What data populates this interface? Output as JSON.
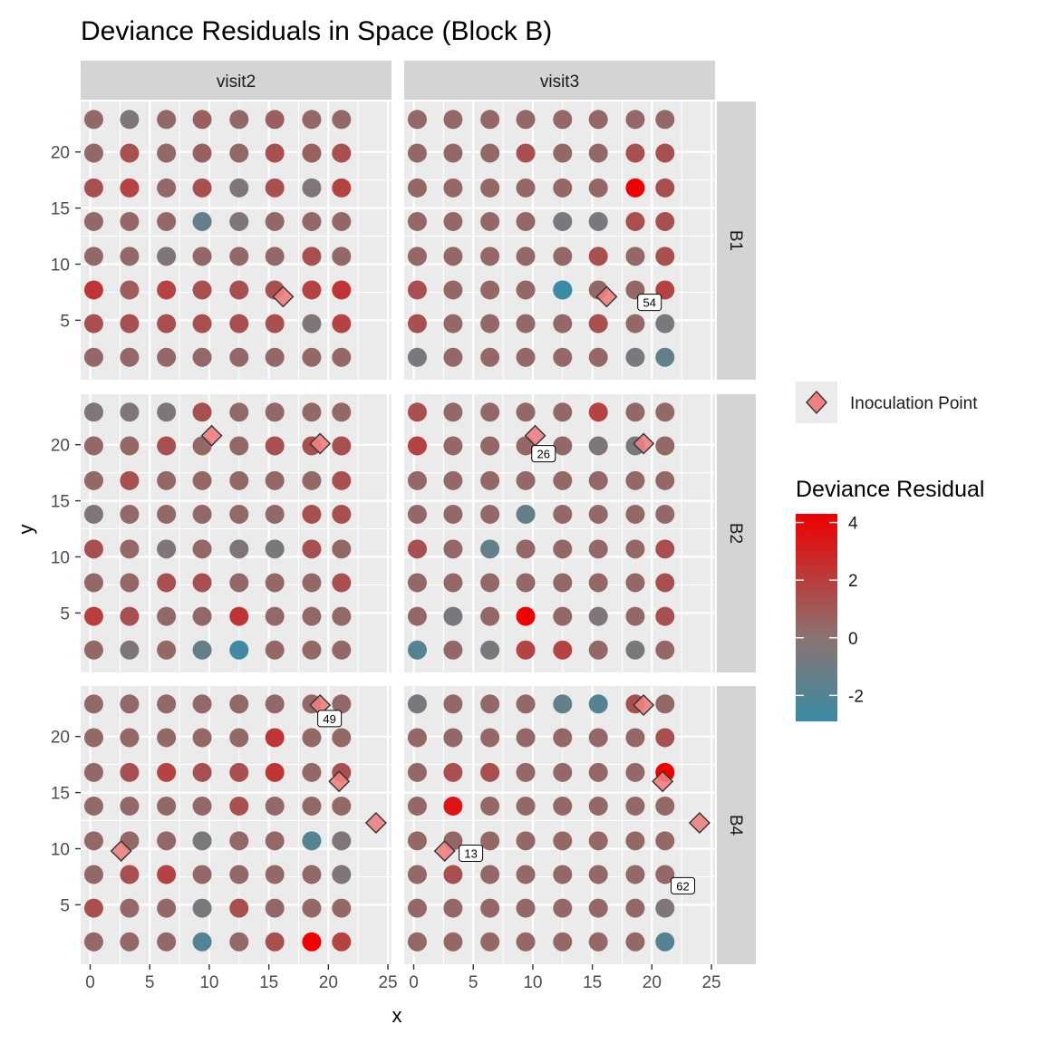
{
  "chart_data": {
    "type": "scatter",
    "title": "Deviance Residuals in Space (Block B)",
    "xlabel": "x",
    "ylabel": "y",
    "xlim": [
      -0.8,
      25.3
    ],
    "ylim": [
      -0.3,
      24.5
    ],
    "xticks": [
      0,
      5,
      10,
      15,
      20,
      25
    ],
    "yticks": [
      5,
      10,
      15,
      20
    ],
    "grid": true,
    "facet_cols": [
      "visit2",
      "visit3"
    ],
    "facet_rows": [
      "B1",
      "B2",
      "B4"
    ],
    "x_positions": [
      0.3,
      3.3,
      6.4,
      9.4,
      12.5,
      15.5,
      18.6,
      21.1
    ],
    "y_positions": [
      1.7,
      4.7,
      7.7,
      10.7,
      13.8,
      16.8,
      19.9,
      22.9
    ],
    "color_scale": {
      "title": "Deviance Residual",
      "min": -2.9,
      "max": 4.3,
      "low": "#3a8ba4",
      "mid": "#8a7372",
      "high": "#ee0000",
      "breaks": [
        4,
        2,
        0,
        -2
      ]
    },
    "legend": {
      "placement": "right",
      "inoculation_label": "Inoculation Point",
      "inoculation_color": "#f08080"
    },
    "panels": [
      {
        "row": "B1",
        "col": "visit2",
        "residuals": [
          [
            0.4,
            -0.4,
            0.4,
            0.7,
            0.4,
            0.7,
            0.4,
            0.4
          ],
          [
            0.4,
            1.3,
            0.4,
            0.7,
            0.4,
            1.3,
            0.7,
            1.3
          ],
          [
            1.3,
            1.8,
            0.4,
            1.3,
            -0.4,
            1.3,
            -0.4,
            1.8
          ],
          [
            0.4,
            0.4,
            0.4,
            -1.4,
            -0.4,
            0.4,
            0.4,
            0.4
          ],
          [
            0.4,
            0.4,
            -0.4,
            0.4,
            0.4,
            0.4,
            1.3,
            0.4
          ],
          [
            2.3,
            0.8,
            1.8,
            1.3,
            1.3,
            1.3,
            1.8,
            2.3
          ],
          [
            1.3,
            1.3,
            1.3,
            1.3,
            1.3,
            1.3,
            -0.4,
            1.8
          ],
          [
            0.4,
            0.4,
            0.4,
            0.4,
            0.4,
            0.4,
            0.4,
            0.4
          ]
        ],
        "inoculation": [
          {
            "x": 16.2,
            "y": 7.1
          }
        ],
        "labels": []
      },
      {
        "row": "B1",
        "col": "visit3",
        "residuals": [
          [
            0.4,
            0.4,
            0.4,
            0.4,
            0.4,
            0.4,
            0.4,
            0.4
          ],
          [
            0.4,
            0.4,
            0.4,
            1.3,
            0.4,
            0.4,
            1.3,
            1.3
          ],
          [
            0.4,
            0.4,
            0.4,
            0.4,
            0.4,
            0.4,
            4.3,
            1.3
          ],
          [
            0.4,
            0.4,
            0.4,
            0.4,
            -0.6,
            -0.6,
            1.3,
            1.3
          ],
          [
            0.4,
            0.4,
            0.4,
            0.4,
            0.4,
            1.3,
            0.4,
            1.3
          ],
          [
            1.3,
            0.4,
            0.4,
            0.4,
            0.4,
            0.4,
            0.4,
            1.8
          ],
          [
            1.3,
            0.4,
            0.4,
            0.4,
            0.4,
            1.3,
            0.4,
            -0.6
          ],
          [
            -0.6,
            0.4,
            0.4,
            0.4,
            0.4,
            0.4,
            -0.6,
            -1.4
          ]
        ],
        "overrides": [
          {
            "x": 12.5,
            "y": 7.7,
            "value": -2.9
          }
        ],
        "inoculation": [
          {
            "x": 16.2,
            "y": 7.1
          }
        ],
        "labels": [
          {
            "x": 19.8,
            "y": 6.6,
            "text": "54"
          }
        ]
      },
      {
        "row": "B2",
        "col": "visit2",
        "residuals": [
          [
            -0.4,
            -0.4,
            -0.4,
            1.3,
            0.4,
            0.4,
            0.4,
            0.4
          ],
          [
            0.4,
            0.4,
            1.3,
            0.4,
            0.4,
            1.3,
            1.3,
            1.3
          ],
          [
            0.4,
            1.3,
            0.4,
            0.4,
            0.4,
            0.4,
            0.4,
            1.3
          ],
          [
            -0.4,
            0.4,
            0.4,
            0.4,
            0.4,
            0.4,
            1.3,
            1.3
          ],
          [
            1.3,
            0.4,
            -0.4,
            0.4,
            -0.4,
            -0.6,
            1.3,
            0.4
          ],
          [
            0.4,
            0.4,
            1.3,
            1.3,
            0.4,
            0.4,
            0.4,
            1.3
          ],
          [
            2.0,
            1.3,
            0.4,
            0.4,
            2.3,
            0.4,
            0.4,
            0.4
          ],
          [
            0.4,
            -0.4,
            0.4,
            -1.4,
            -2.8,
            0.4,
            0.4,
            0.4
          ]
        ],
        "inoculation": [
          {
            "x": 10.2,
            "y": 20.8
          },
          {
            "x": 19.3,
            "y": 20.1
          }
        ],
        "labels": []
      },
      {
        "row": "B2",
        "col": "visit3",
        "residuals": [
          [
            1.3,
            0.4,
            0.4,
            0.4,
            0.4,
            1.8,
            0.4,
            0.4
          ],
          [
            1.8,
            0.4,
            0.4,
            0.4,
            0.4,
            -0.4,
            -0.6,
            0.4
          ],
          [
            0.4,
            0.4,
            0.4,
            0.4,
            0.4,
            0.4,
            0.4,
            0.4
          ],
          [
            0.4,
            0.4,
            0.4,
            -1.4,
            0.4,
            0.4,
            0.4,
            0.4
          ],
          [
            1.3,
            0.4,
            -1.4,
            0.4,
            0.4,
            0.4,
            0.4,
            1.3
          ],
          [
            0.4,
            0.4,
            0.4,
            0.4,
            0.4,
            0.4,
            0.4,
            1.3
          ],
          [
            0.4,
            -0.6,
            0.4,
            4.3,
            0.4,
            -0.4,
            0.4,
            1.3
          ],
          [
            -1.9,
            0.4,
            -0.6,
            1.8,
            1.8,
            0.4,
            -0.6,
            0.4
          ]
        ],
        "inoculation": [
          {
            "x": 10.2,
            "y": 20.8
          },
          {
            "x": 19.3,
            "y": 20.1
          }
        ],
        "labels": [
          {
            "x": 10.9,
            "y": 19.2,
            "text": "26"
          }
        ]
      },
      {
        "row": "B4",
        "col": "visit2",
        "residuals": [
          [
            0.4,
            0.4,
            0.4,
            0.4,
            0.4,
            0.4,
            0.4,
            0.4
          ],
          [
            0.4,
            0.4,
            0.4,
            0.4,
            0.4,
            2.3,
            0.4,
            0.4
          ],
          [
            0.4,
            1.3,
            1.8,
            1.3,
            1.3,
            2.3,
            0.4,
            1.3
          ],
          [
            0.4,
            0.4,
            0.4,
            0.4,
            1.3,
            0.4,
            0.4,
            0.4
          ],
          [
            0.4,
            0.4,
            0.4,
            -0.6,
            0.4,
            0.4,
            -1.9,
            -0.4
          ],
          [
            0.4,
            1.3,
            1.8,
            0.4,
            0.4,
            0.4,
            0.4,
            -0.4
          ],
          [
            1.3,
            0.4,
            0.4,
            -0.6,
            1.3,
            0.4,
            0.4,
            0.4
          ],
          [
            0.4,
            0.4,
            0.4,
            -1.9,
            0.4,
            1.3,
            4.3,
            1.8
          ]
        ],
        "inoculation": [
          {
            "x": 2.6,
            "y": 9.8
          },
          {
            "x": 24.0,
            "y": 12.3
          },
          {
            "x": 20.9,
            "y": 16.0
          },
          {
            "x": 19.3,
            "y": 22.8
          }
        ],
        "labels": [
          {
            "x": 20.1,
            "y": 21.6,
            "text": "49"
          }
        ]
      },
      {
        "row": "B4",
        "col": "visit3",
        "residuals": [
          [
            -0.6,
            0.4,
            0.4,
            0.4,
            -1.4,
            -1.9,
            1.3,
            0.4
          ],
          [
            0.4,
            0.4,
            0.4,
            0.4,
            0.4,
            0.4,
            0.4,
            1.3
          ],
          [
            0.4,
            1.3,
            1.3,
            0.4,
            0.4,
            0.4,
            0.4,
            4.3
          ],
          [
            0.4,
            3.6,
            0.4,
            0.4,
            0.4,
            0.4,
            0.4,
            0.4
          ],
          [
            0.4,
            0.4,
            0.4,
            0.4,
            0.4,
            0.4,
            0.4,
            0.4
          ],
          [
            0.4,
            1.3,
            0.4,
            0.4,
            0.4,
            0.4,
            0.4,
            0.4
          ],
          [
            0.4,
            0.4,
            0.4,
            0.4,
            0.4,
            0.4,
            0.4,
            -0.4
          ],
          [
            0.4,
            0.4,
            0.4,
            0.4,
            0.4,
            0.4,
            0.4,
            -1.9
          ]
        ],
        "inoculation": [
          {
            "x": 2.6,
            "y": 9.8
          },
          {
            "x": 24.0,
            "y": 12.3
          },
          {
            "x": 20.9,
            "y": 16.0
          },
          {
            "x": 19.3,
            "y": 22.8
          }
        ],
        "labels": [
          {
            "x": 4.8,
            "y": 9.6,
            "text": "13"
          },
          {
            "x": 22.6,
            "y": 6.7,
            "text": "62"
          }
        ]
      }
    ]
  }
}
